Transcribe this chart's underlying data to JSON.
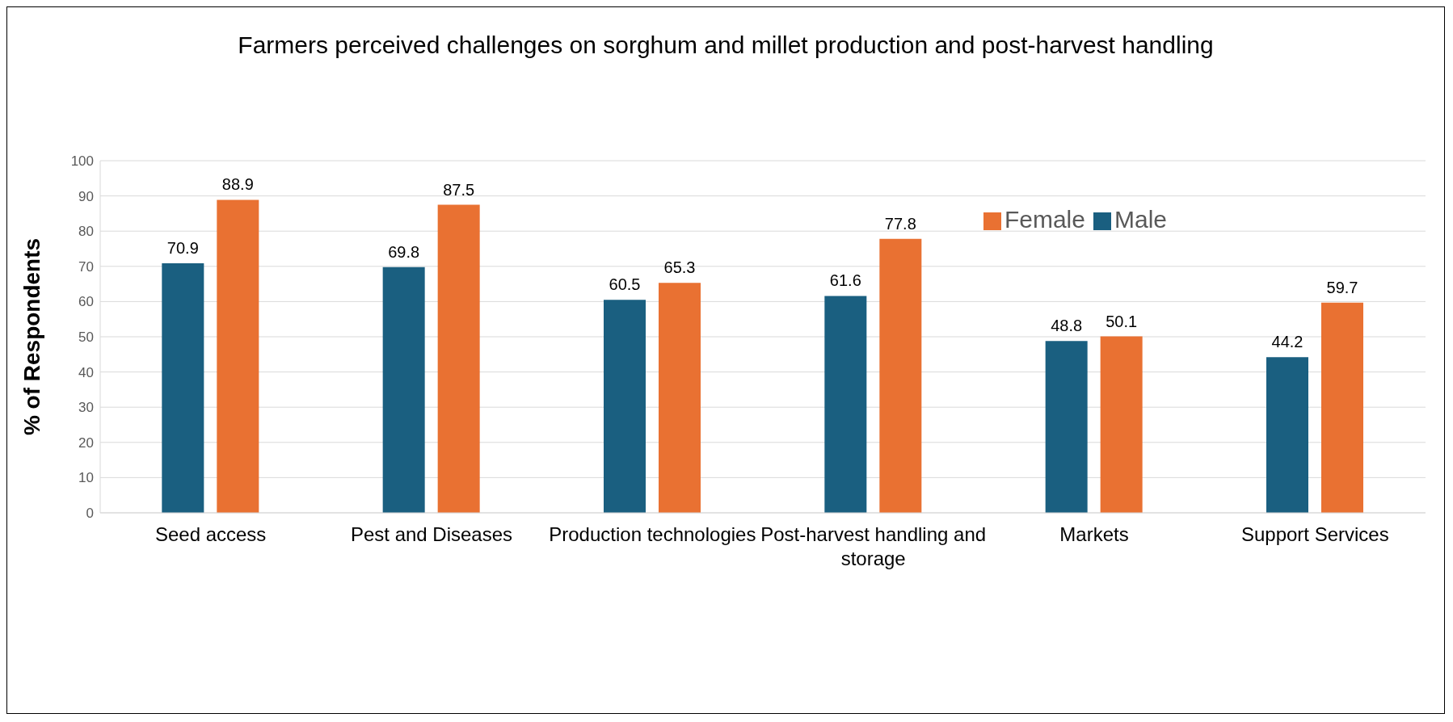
{
  "chart_data": {
    "type": "bar",
    "title": "Farmers perceived challenges on sorghum and millet production and post-harvest handling",
    "ylabel": "% of Respondents",
    "categories": [
      "Seed access",
      "Pest and Diseases",
      "Production technologies",
      "Post-harvest handling and storage",
      "Markets",
      "Support Services"
    ],
    "series": [
      {
        "name": "Male",
        "color": "#1a5f80",
        "values": [
          70.9,
          69.8,
          60.5,
          61.6,
          48.8,
          44.2
        ]
      },
      {
        "name": "Female",
        "color": "#e97132",
        "values": [
          88.9,
          87.5,
          65.3,
          77.8,
          50.1,
          59.7
        ]
      }
    ],
    "ylim": [
      0,
      100
    ],
    "yticks": [
      0,
      10,
      20,
      30,
      40,
      50,
      60,
      70,
      80,
      90,
      100
    ],
    "grid": "y",
    "legend": "top right",
    "data_labels": true
  }
}
